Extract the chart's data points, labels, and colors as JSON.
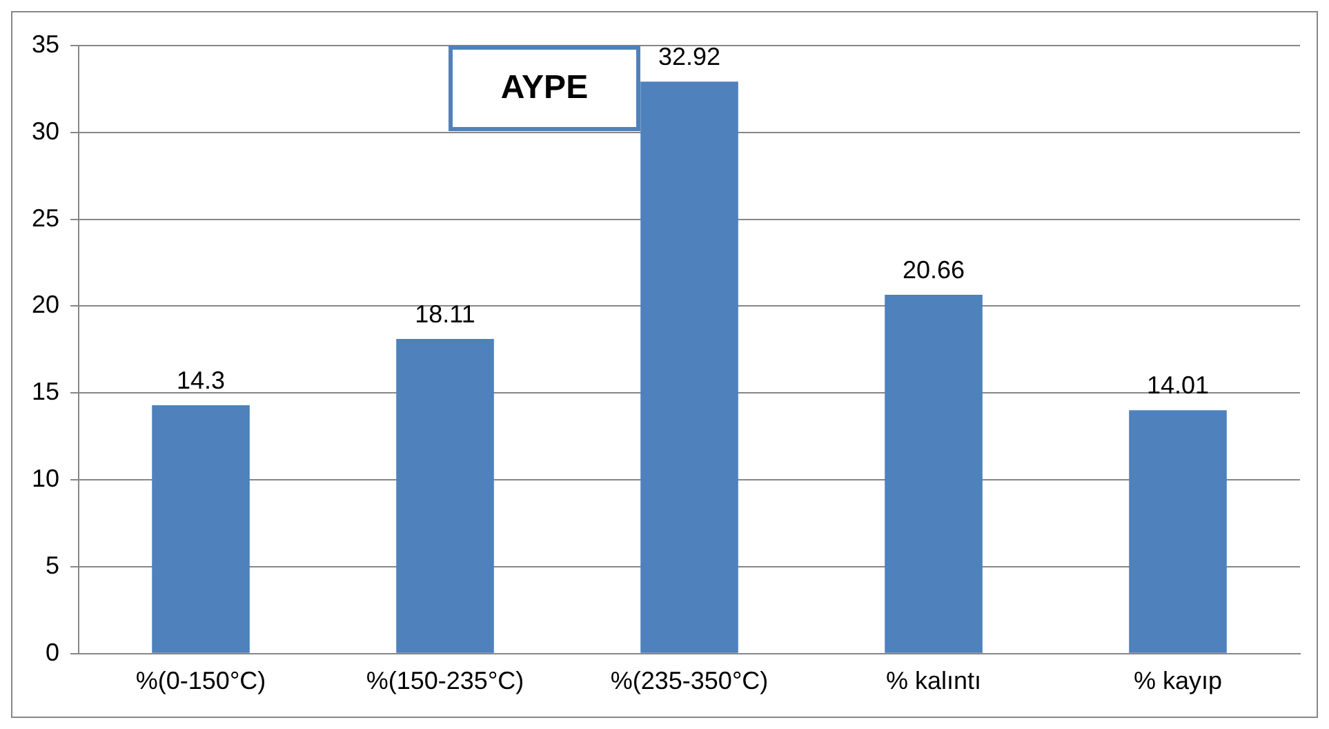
{
  "chart_data": {
    "type": "bar",
    "title": "AYPE",
    "categories": [
      "%(0-150°C)",
      "%(150-235°C)",
      "%(235-350°C)",
      "% kalıntı",
      "% kayıp"
    ],
    "values": [
      14.3,
      18.11,
      32.92,
      20.66,
      14.01
    ],
    "color": "#4f81bd",
    "ylim": [
      0,
      35
    ],
    "yticks": [
      0,
      5,
      10,
      15,
      20,
      25,
      30,
      35
    ],
    "grid": "y",
    "data_labels": true
  }
}
